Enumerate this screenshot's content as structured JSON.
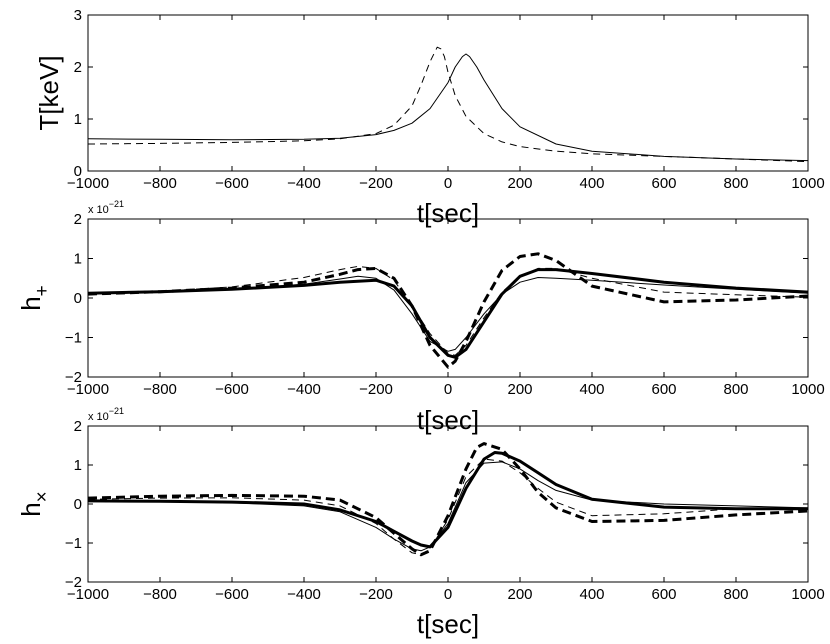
{
  "chart_data": [
    {
      "type": "line",
      "id": "temperature",
      "ylabel": "T[keV]",
      "xlabel": "t[sec]",
      "xlim": [
        -1000,
        1000
      ],
      "ylim": [
        0,
        3
      ],
      "xticks": [
        -1000,
        -800,
        -600,
        -400,
        -200,
        0,
        200,
        400,
        600,
        800,
        1000
      ],
      "yticks": [
        0,
        1,
        2,
        3
      ],
      "series": [
        {
          "name": "solid",
          "style": "thin-solid",
          "x": [
            -1000,
            -800,
            -600,
            -400,
            -300,
            -200,
            -150,
            -100,
            -50,
            0,
            20,
            40,
            50,
            60,
            80,
            100,
            150,
            200,
            300,
            400,
            600,
            800,
            1000
          ],
          "y": [
            0.62,
            0.61,
            0.6,
            0.61,
            0.63,
            0.7,
            0.78,
            0.92,
            1.2,
            1.7,
            2.0,
            2.2,
            2.25,
            2.2,
            2.0,
            1.75,
            1.2,
            0.85,
            0.52,
            0.38,
            0.28,
            0.23,
            0.2
          ]
        },
        {
          "name": "dashed",
          "style": "thin-dashed",
          "x": [
            -1000,
            -800,
            -600,
            -400,
            -300,
            -200,
            -150,
            -100,
            -75,
            -50,
            -30,
            -20,
            -10,
            0,
            20,
            50,
            100,
            150,
            200,
            300,
            400,
            600,
            800,
            1000
          ],
          "y": [
            0.52,
            0.53,
            0.55,
            0.58,
            0.62,
            0.72,
            0.88,
            1.25,
            1.65,
            2.1,
            2.38,
            2.35,
            2.2,
            1.9,
            1.45,
            1.05,
            0.72,
            0.56,
            0.47,
            0.38,
            0.33,
            0.28,
            0.23,
            0.18
          ]
        }
      ]
    },
    {
      "type": "line",
      "id": "h-plus",
      "ylabel": "h",
      "ylabel_sub": "+",
      "xlabel": "t[sec]",
      "exponent": "x 10",
      "exponent_power": "−21",
      "xlim": [
        -1000,
        1000
      ],
      "ylim": [
        -2,
        2
      ],
      "xticks": [
        -1000,
        -800,
        -600,
        -400,
        -200,
        0,
        200,
        400,
        600,
        800,
        1000
      ],
      "yticks": [
        -2,
        -1,
        0,
        1,
        2
      ],
      "series": [
        {
          "name": "thick-solid",
          "style": "thick-solid",
          "x": [
            -1000,
            -800,
            -600,
            -400,
            -300,
            -200,
            -150,
            -100,
            -50,
            0,
            20,
            50,
            100,
            150,
            200,
            250,
            300,
            400,
            600,
            800,
            1000
          ],
          "y": [
            0.12,
            0.16,
            0.22,
            0.32,
            0.4,
            0.45,
            0.3,
            -0.2,
            -1.0,
            -1.45,
            -1.5,
            -1.3,
            -0.6,
            0.1,
            0.55,
            0.72,
            0.72,
            0.62,
            0.4,
            0.25,
            0.15
          ]
        },
        {
          "name": "thin-solid",
          "style": "thin-solid",
          "x": [
            -1000,
            -800,
            -600,
            -400,
            -300,
            -250,
            -200,
            -150,
            -100,
            -50,
            0,
            20,
            50,
            100,
            150,
            200,
            250,
            300,
            400,
            600,
            800,
            1000
          ],
          "y": [
            0.1,
            0.15,
            0.22,
            0.35,
            0.48,
            0.55,
            0.5,
            0.2,
            -0.4,
            -1.1,
            -1.35,
            -1.3,
            -1.0,
            -0.4,
            0.1,
            0.4,
            0.52,
            0.5,
            0.45,
            0.33,
            0.22,
            0.12
          ]
        },
        {
          "name": "thick-dashed",
          "style": "thick-dashed",
          "x": [
            -1000,
            -800,
            -600,
            -400,
            -300,
            -250,
            -200,
            -150,
            -100,
            -50,
            0,
            20,
            50,
            100,
            150,
            200,
            250,
            300,
            400,
            600,
            800,
            1000
          ],
          "y": [
            0.1,
            0.16,
            0.25,
            0.4,
            0.6,
            0.72,
            0.75,
            0.5,
            -0.2,
            -1.2,
            -1.75,
            -1.6,
            -1.1,
            -0.1,
            0.7,
            1.05,
            1.12,
            0.95,
            0.3,
            -0.1,
            -0.05,
            0.05
          ]
        },
        {
          "name": "thin-dashed",
          "style": "thin-dashed",
          "x": [
            -1000,
            -800,
            -600,
            -400,
            -300,
            -250,
            -200,
            -150,
            -100,
            -50,
            0,
            20,
            50,
            100,
            150,
            200,
            250,
            300,
            400,
            600,
            800,
            1000
          ],
          "y": [
            0.1,
            0.17,
            0.28,
            0.52,
            0.72,
            0.8,
            0.75,
            0.45,
            -0.2,
            -0.9,
            -1.4,
            -1.45,
            -1.2,
            -0.5,
            0.15,
            0.55,
            0.75,
            0.75,
            0.5,
            0.15,
            0.08,
            0.02
          ]
        }
      ]
    },
    {
      "type": "line",
      "id": "h-cross",
      "ylabel": "h",
      "ylabel_sub": "×",
      "xlabel": "t[sec]",
      "exponent": "x 10",
      "exponent_power": "−21",
      "xlim": [
        -1000,
        1000
      ],
      "ylim": [
        -2,
        2
      ],
      "xticks": [
        -1000,
        -800,
        -600,
        -400,
        -200,
        0,
        200,
        400,
        600,
        800,
        1000
      ],
      "yticks": [
        -2,
        -1,
        0,
        1,
        2
      ],
      "series": [
        {
          "name": "thick-solid",
          "style": "thick-solid",
          "x": [
            -1000,
            -800,
            -600,
            -400,
            -300,
            -200,
            -150,
            -100,
            -75,
            -50,
            0,
            50,
            100,
            130,
            150,
            200,
            250,
            300,
            400,
            600,
            800,
            1000
          ],
          "y": [
            0.08,
            0.07,
            0.05,
            0.0,
            -0.15,
            -0.45,
            -0.7,
            -0.95,
            -1.05,
            -1.1,
            -0.6,
            0.4,
            1.15,
            1.32,
            1.3,
            1.1,
            0.8,
            0.5,
            0.12,
            -0.08,
            -0.12,
            -0.12
          ]
        },
        {
          "name": "thin-solid",
          "style": "thin-solid",
          "x": [
            -1000,
            -800,
            -600,
            -400,
            -300,
            -200,
            -150,
            -100,
            -75,
            -50,
            0,
            50,
            100,
            150,
            200,
            250,
            300,
            400,
            600,
            800,
            1000
          ],
          "y": [
            0.08,
            0.06,
            0.03,
            -0.05,
            -0.2,
            -0.6,
            -0.9,
            -1.15,
            -1.2,
            -1.1,
            -0.5,
            0.55,
            1.05,
            1.08,
            0.9,
            0.6,
            0.35,
            0.1,
            0.0,
            -0.05,
            -0.1
          ]
        },
        {
          "name": "thick-dashed",
          "style": "thick-dashed",
          "x": [
            -1000,
            -800,
            -600,
            -400,
            -300,
            -200,
            -150,
            -100,
            -75,
            -50,
            0,
            50,
            80,
            100,
            150,
            200,
            250,
            300,
            400,
            600,
            800,
            1000
          ],
          "y": [
            0.15,
            0.2,
            0.22,
            0.2,
            0.1,
            -0.35,
            -0.75,
            -1.15,
            -1.3,
            -1.2,
            -0.3,
            0.9,
            1.45,
            1.55,
            1.4,
            0.9,
            0.3,
            -0.1,
            -0.45,
            -0.42,
            -0.28,
            -0.18
          ]
        },
        {
          "name": "thin-dashed",
          "style": "thin-dashed",
          "x": [
            -1000,
            -800,
            -600,
            -400,
            -300,
            -200,
            -150,
            -100,
            -75,
            -50,
            0,
            50,
            100,
            150,
            200,
            250,
            300,
            400,
            600,
            800,
            1000
          ],
          "y": [
            0.12,
            0.15,
            0.16,
            0.1,
            -0.05,
            -0.5,
            -0.9,
            -1.25,
            -1.3,
            -1.15,
            -0.4,
            0.7,
            1.15,
            1.1,
            0.8,
            0.4,
            0.05,
            -0.3,
            -0.25,
            -0.12,
            -0.12
          ]
        }
      ]
    }
  ]
}
